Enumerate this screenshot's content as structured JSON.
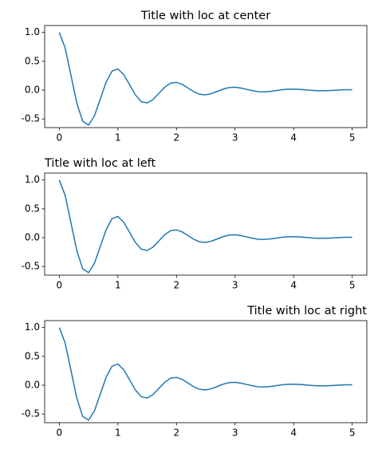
{
  "chart_data": [
    {
      "type": "line",
      "title": "Title with loc at center",
      "title_loc": "center",
      "color": "#1f77b4",
      "x": [
        0,
        0.1,
        0.2,
        0.3,
        0.4,
        0.5,
        0.6,
        0.7,
        0.8,
        0.9,
        1,
        1.1,
        1.2,
        1.3,
        1.4,
        1.5,
        1.6,
        1.7,
        1.8,
        1.9,
        2,
        2.1,
        2.2,
        2.3,
        2.4,
        2.5,
        2.6,
        2.7,
        2.8,
        2.9,
        3,
        3.1,
        3.2,
        3.3,
        3.4,
        3.5,
        3.6,
        3.7,
        3.8,
        3.9,
        4,
        4.1,
        4.2,
        4.3,
        4.4,
        4.5,
        4.6,
        4.7,
        4.8,
        4.9,
        5
      ],
      "values": [
        1,
        0.732,
        0.253,
        -0.229,
        -0.542,
        -0.607,
        -0.444,
        -0.153,
        0.139,
        0.329,
        0.368,
        0.269,
        0.093,
        -0.084,
        -0.2,
        -0.223,
        -0.163,
        -0.056,
        0.051,
        0.121,
        0.135,
        0.099,
        0.034,
        -0.031,
        -0.073,
        -0.082,
        -0.06,
        -0.021,
        0.019,
        0.045,
        0.05,
        0.036,
        0.013,
        -0.011,
        -0.027,
        -0.03,
        -0.022,
        -0.008,
        0.007,
        0.016,
        0.018,
        0.013,
        0.005,
        -0.004,
        -0.01,
        -0.011,
        -0.008,
        -0.003,
        0.003,
        0.006,
        0.007
      ],
      "xlim": [
        -0.25,
        5.25
      ],
      "xticks": [
        0,
        1,
        2,
        3,
        4,
        5
      ],
      "ylim": [
        -0.65,
        1.12
      ],
      "yticks": [
        {
          "value": 1,
          "label": "1.0"
        },
        0.5,
        {
          "value": 0,
          "label": "0.0"
        },
        -0.5
      ]
    },
    {
      "type": "line",
      "title": "Title with loc at left",
      "title_loc": "left",
      "color": "#1f77b4",
      "x": [
        0,
        0.1,
        0.2,
        0.3,
        0.4,
        0.5,
        0.6,
        0.7,
        0.8,
        0.9,
        1,
        1.1,
        1.2,
        1.3,
        1.4,
        1.5,
        1.6,
        1.7,
        1.8,
        1.9,
        2,
        2.1,
        2.2,
        2.3,
        2.4,
        2.5,
        2.6,
        2.7,
        2.8,
        2.9,
        3,
        3.1,
        3.2,
        3.3,
        3.4,
        3.5,
        3.6,
        3.7,
        3.8,
        3.9,
        4,
        4.1,
        4.2,
        4.3,
        4.4,
        4.5,
        4.6,
        4.7,
        4.8,
        4.9,
        5
      ],
      "values": [
        1,
        0.732,
        0.253,
        -0.229,
        -0.542,
        -0.607,
        -0.444,
        -0.153,
        0.139,
        0.329,
        0.368,
        0.269,
        0.093,
        -0.084,
        -0.2,
        -0.223,
        -0.163,
        -0.056,
        0.051,
        0.121,
        0.135,
        0.099,
        0.034,
        -0.031,
        -0.073,
        -0.082,
        -0.06,
        -0.021,
        0.019,
        0.045,
        0.05,
        0.036,
        0.013,
        -0.011,
        -0.027,
        -0.03,
        -0.022,
        -0.008,
        0.007,
        0.016,
        0.018,
        0.013,
        0.005,
        -0.004,
        -0.01,
        -0.011,
        -0.008,
        -0.003,
        0.003,
        0.006,
        0.007
      ],
      "xlim": [
        -0.25,
        5.25
      ],
      "xticks": [
        0,
        1,
        2,
        3,
        4,
        5
      ],
      "ylim": [
        -0.65,
        1.12
      ],
      "yticks": [
        {
          "value": 1,
          "label": "1.0"
        },
        0.5,
        {
          "value": 0,
          "label": "0.0"
        },
        -0.5
      ]
    },
    {
      "type": "line",
      "title": "Title with loc at right",
      "title_loc": "right",
      "color": "#1f77b4",
      "x": [
        0,
        0.1,
        0.2,
        0.3,
        0.4,
        0.5,
        0.6,
        0.7,
        0.8,
        0.9,
        1,
        1.1,
        1.2,
        1.3,
        1.4,
        1.5,
        1.6,
        1.7,
        1.8,
        1.9,
        2,
        2.1,
        2.2,
        2.3,
        2.4,
        2.5,
        2.6,
        2.7,
        2.8,
        2.9,
        3,
        3.1,
        3.2,
        3.3,
        3.4,
        3.5,
        3.6,
        3.7,
        3.8,
        3.9,
        4,
        4.1,
        4.2,
        4.3,
        4.4,
        4.5,
        4.6,
        4.7,
        4.8,
        4.9,
        5
      ],
      "values": [
        1,
        0.732,
        0.253,
        -0.229,
        -0.542,
        -0.607,
        -0.444,
        -0.153,
        0.139,
        0.329,
        0.368,
        0.269,
        0.093,
        -0.084,
        -0.2,
        -0.223,
        -0.163,
        -0.056,
        0.051,
        0.121,
        0.135,
        0.099,
        0.034,
        -0.031,
        -0.073,
        -0.082,
        -0.06,
        -0.021,
        0.019,
        0.045,
        0.05,
        0.036,
        0.013,
        -0.011,
        -0.027,
        -0.03,
        -0.022,
        -0.008,
        0.007,
        0.016,
        0.018,
        0.013,
        0.005,
        -0.004,
        -0.01,
        -0.011,
        -0.008,
        -0.003,
        0.003,
        0.006,
        0.007
      ],
      "xlim": [
        -0.25,
        5.25
      ],
      "xticks": [
        0,
        1,
        2,
        3,
        4,
        5
      ],
      "ylim": [
        -0.65,
        1.12
      ],
      "yticks": [
        {
          "value": 1,
          "label": "1.0"
        },
        0.5,
        {
          "value": 0,
          "label": "0.0"
        },
        -0.5
      ]
    }
  ]
}
